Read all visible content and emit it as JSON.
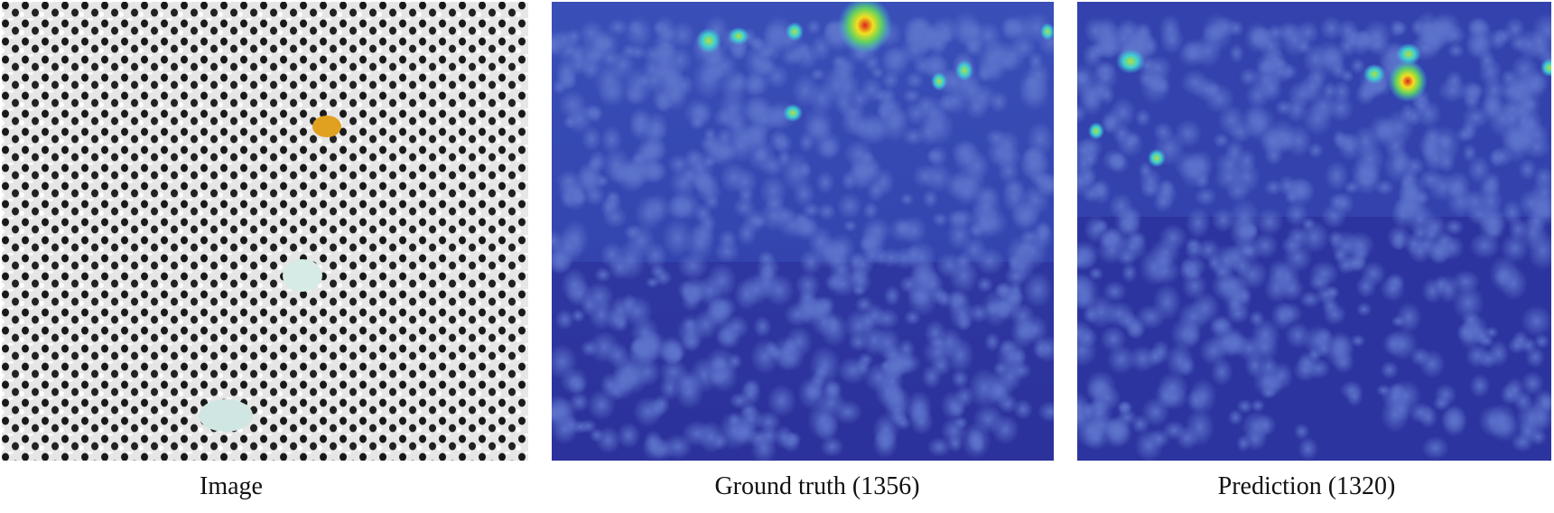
{
  "figure": {
    "panels": [
      {
        "caption": "Image"
      },
      {
        "caption": "Ground truth (1356)"
      },
      {
        "caption": "Prediction (1320)"
      }
    ]
  }
}
